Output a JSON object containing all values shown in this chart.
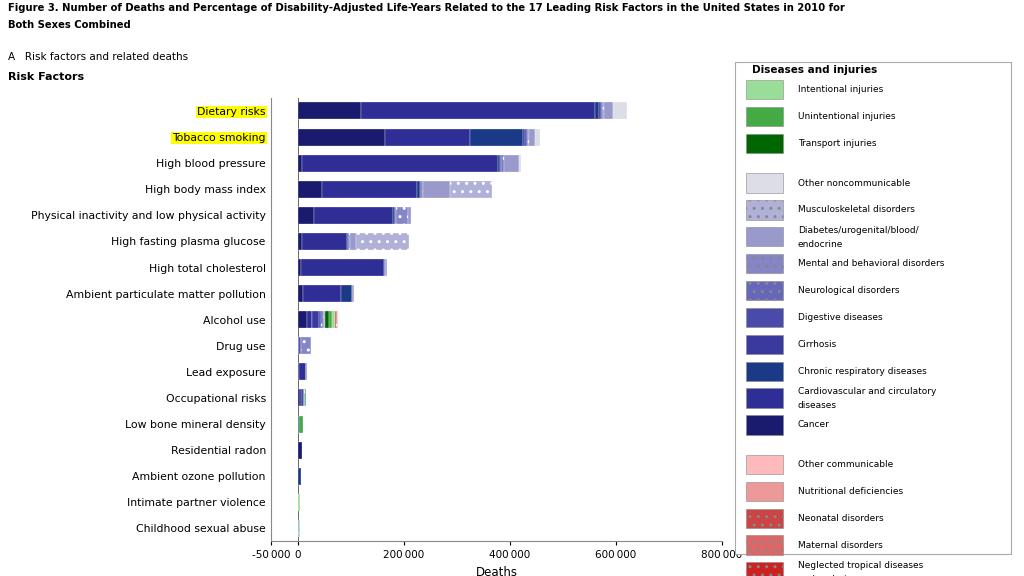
{
  "title_line1": "Figure 3. Number of Deaths and Percentage of Disability-Adjusted Life-Years Related to the 17 Leading Risk Factors in the United States in 2010 for",
  "title_line2": "Both Sexes Combined",
  "subtitle": "A   Risk factors and related deaths",
  "xlabel": "Deaths",
  "xlim": [
    -50000,
    800000
  ],
  "risk_factors": [
    "Dietary risks",
    "Tobacco smoking",
    "High blood pressure",
    "High body mass index",
    "Physical inactivity and low physical activity",
    "High fasting plasma glucose",
    "High total cholesterol",
    "Ambient particulate matter pollution",
    "Alcohol use",
    "Drug use",
    "Lead exposure",
    "Occupational risks",
    "Low bone mineral density",
    "Residential radon",
    "Ambient ozone pollution",
    "Intimate partner violence",
    "Childhood sexual abuse"
  ],
  "highlighted": [
    0,
    1
  ],
  "highlight_color": "#FFFF00",
  "bar_data": {
    "Dietary risks": {
      "Cancer": 120000,
      "Cardiovascular and circulatory diseases": 440000,
      "Chronic respiratory diseases": 8000,
      "Cirrhosis": 3000,
      "Digestive diseases": 3000,
      "Neurological disorders": 2000,
      "Mental and behavioral disorders": 1000,
      "Diabetes/urogenital/blood/endocrine": 18000,
      "Musculoskeletal disorders": 0,
      "Other noncommunicable": 25000,
      "Transport injuries": 0,
      "Unintentional injuries": 0,
      "Intentional injuries": 0,
      "Neglected tropical diseases and malaria": 0,
      "Maternal disorders": 0,
      "Neonatal disorders": 0,
      "Nutritional deficiencies": 0,
      "Other communicable": 0
    },
    "Tobacco smoking": {
      "Cancer": 165000,
      "Cardiovascular and circulatory diseases": 160000,
      "Chronic respiratory diseases": 100000,
      "Cirrhosis": 4000,
      "Digestive diseases": 4000,
      "Neurological disorders": 2000,
      "Mental and behavioral disorders": 1000,
      "Diabetes/urogenital/blood/endocrine": 12000,
      "Musculoskeletal disorders": 0,
      "Other noncommunicable": 8000,
      "Transport injuries": 0,
      "Unintentional injuries": 0,
      "Intentional injuries": 0,
      "Neglected tropical diseases and malaria": 0,
      "Maternal disorders": 0,
      "Neonatal disorders": 0,
      "Nutritional deficiencies": 0,
      "Other communicable": 0
    },
    "High blood pressure": {
      "Cancer": 8000,
      "Cardiovascular and circulatory diseases": 370000,
      "Chronic respiratory diseases": 4000,
      "Cirrhosis": 2000,
      "Digestive diseases": 2000,
      "Neurological disorders": 2000,
      "Mental and behavioral disorders": 1000,
      "Diabetes/urogenital/blood/endocrine": 28000,
      "Musculoskeletal disorders": 0,
      "Other noncommunicable": 4000,
      "Transport injuries": 0,
      "Unintentional injuries": 0,
      "Intentional injuries": 0,
      "Neglected tropical diseases and malaria": 0,
      "Maternal disorders": 0,
      "Neonatal disorders": 0,
      "Nutritional deficiencies": 0,
      "Other communicable": 0
    },
    "High body mass index": {
      "Cancer": 45000,
      "Cardiovascular and circulatory diseases": 180000,
      "Chronic respiratory diseases": 5000,
      "Cirrhosis": 2000,
      "Digestive diseases": 2000,
      "Neurological disorders": 2000,
      "Mental and behavioral disorders": 1000,
      "Diabetes/urogenital/blood/endocrine": 50000,
      "Musculoskeletal disorders": 80000,
      "Other noncommunicable": 0,
      "Transport injuries": 0,
      "Unintentional injuries": 0,
      "Intentional injuries": 0,
      "Neglected tropical diseases and malaria": 0,
      "Maternal disorders": 0,
      "Neonatal disorders": 0,
      "Nutritional deficiencies": 0,
      "Other communicable": 0
    },
    "Physical inactivity and low physical activity": {
      "Cancer": 30000,
      "Cardiovascular and circulatory diseases": 150000,
      "Chronic respiratory diseases": 3000,
      "Cirrhosis": 1000,
      "Digestive diseases": 1000,
      "Neurological disorders": 1000,
      "Mental and behavioral disorders": 22000,
      "Diabetes/urogenital/blood/endocrine": 5000,
      "Musculoskeletal disorders": 0,
      "Other noncommunicable": 0,
      "Transport injuries": 0,
      "Unintentional injuries": 0,
      "Intentional injuries": 0,
      "Neglected tropical diseases and malaria": 0,
      "Maternal disorders": 0,
      "Neonatal disorders": 0,
      "Nutritional deficiencies": 0,
      "Other communicable": 0
    },
    "High fasting plasma glucose": {
      "Cancer": 8000,
      "Cardiovascular and circulatory diseases": 85000,
      "Chronic respiratory diseases": 2000,
      "Cirrhosis": 1000,
      "Digestive diseases": 1000,
      "Neurological disorders": 1000,
      "Mental and behavioral disorders": 1000,
      "Diabetes/urogenital/blood/endocrine": 10000,
      "Musculoskeletal disorders": 100000,
      "Other noncommunicable": 0,
      "Transport injuries": 0,
      "Unintentional injuries": 0,
      "Intentional injuries": 0,
      "Neglected tropical diseases and malaria": 0,
      "Maternal disorders": 0,
      "Neonatal disorders": 0,
      "Nutritional deficiencies": 0,
      "Other communicable": 0
    },
    "High total cholesterol": {
      "Cancer": 5000,
      "Cardiovascular and circulatory diseases": 158000,
      "Chronic respiratory diseases": 1000,
      "Cirrhosis": 500,
      "Digestive diseases": 500,
      "Neurological disorders": 500,
      "Mental and behavioral disorders": 500,
      "Diabetes/urogenital/blood/endocrine": 2000,
      "Musculoskeletal disorders": 0,
      "Other noncommunicable": 0,
      "Transport injuries": 0,
      "Unintentional injuries": 0,
      "Intentional injuries": 0,
      "Neglected tropical diseases and malaria": 0,
      "Maternal disorders": 0,
      "Neonatal disorders": 0,
      "Nutritional deficiencies": 0,
      "Other communicable": 0
    },
    "Ambient particulate matter pollution": {
      "Cancer": 10000,
      "Cardiovascular and circulatory diseases": 72000,
      "Chronic respiratory diseases": 20000,
      "Cirrhosis": 1000,
      "Digestive diseases": 500,
      "Neurological disorders": 500,
      "Mental and behavioral disorders": 500,
      "Diabetes/urogenital/blood/endocrine": 1000,
      "Musculoskeletal disorders": 0,
      "Other noncommunicable": 0,
      "Transport injuries": 0,
      "Unintentional injuries": 0,
      "Intentional injuries": 0,
      "Neglected tropical diseases and malaria": 0,
      "Maternal disorders": 0,
      "Neonatal disorders": 0,
      "Nutritional deficiencies": 0,
      "Other communicable": 0
    },
    "Alcohol use": {
      "Cancer": 18000,
      "Cardiovascular and circulatory diseases": 8000,
      "Chronic respiratory diseases": 500,
      "Cirrhosis": 14000,
      "Digestive diseases": 4000,
      "Neurological disorders": 2000,
      "Mental and behavioral disorders": 3000,
      "Diabetes/urogenital/blood/endocrine": 2000,
      "Musculoskeletal disorders": 0,
      "Other noncommunicable": 0,
      "Transport injuries": 8000,
      "Unintentional injuries": 5000,
      "Intentional injuries": 5000,
      "Neglected tropical diseases and malaria": 2000,
      "Maternal disorders": 0,
      "Neonatal disorders": 2000,
      "Nutritional deficiencies": 1000,
      "Other communicable": 2000
    },
    "Drug use": {
      "Cancer": 500,
      "Cardiovascular and circulatory diseases": 2000,
      "Chronic respiratory diseases": 500,
      "Cirrhosis": 2000,
      "Digestive diseases": 500,
      "Neurological disorders": 500,
      "Mental and behavioral disorders": 18000,
      "Diabetes/urogenital/blood/endocrine": 500,
      "Musculoskeletal disorders": 0,
      "Other noncommunicable": 0,
      "Transport injuries": 0,
      "Unintentional injuries": 0,
      "Intentional injuries": 0,
      "Neglected tropical diseases and malaria": 0,
      "Maternal disorders": 0,
      "Neonatal disorders": 0,
      "Nutritional deficiencies": 0,
      "Other communicable": 0
    },
    "Lead exposure": {
      "Cancer": 1500,
      "Cardiovascular and circulatory diseases": 13000,
      "Chronic respiratory diseases": 500,
      "Cirrhosis": 500,
      "Digestive diseases": 500,
      "Neurological disorders": 500,
      "Mental and behavioral disorders": 500,
      "Diabetes/urogenital/blood/endocrine": 500,
      "Musculoskeletal disorders": 0,
      "Other noncommunicable": 0,
      "Transport injuries": 0,
      "Unintentional injuries": 0,
      "Intentional injuries": 0,
      "Neglected tropical diseases and malaria": 0,
      "Maternal disorders": 0,
      "Neonatal disorders": 0,
      "Nutritional deficiencies": 0,
      "Other communicable": 0
    },
    "Occupational risks": {
      "Cancer": 4000,
      "Cardiovascular and circulatory diseases": 4000,
      "Chronic respiratory diseases": 3000,
      "Cirrhosis": 500,
      "Digestive diseases": 500,
      "Neurological disorders": 500,
      "Mental and behavioral disorders": 500,
      "Diabetes/urogenital/blood/endocrine": 500,
      "Musculoskeletal disorders": 0,
      "Other noncommunicable": 0,
      "Transport injuries": 0,
      "Unintentional injuries": 2000,
      "Intentional injuries": 0,
      "Neglected tropical diseases and malaria": 0,
      "Maternal disorders": 0,
      "Neonatal disorders": 0,
      "Nutritional deficiencies": 0,
      "Other communicable": 0
    },
    "Low bone mineral density": {
      "Cancer": 0,
      "Cardiovascular and circulatory diseases": 2000,
      "Chronic respiratory diseases": 0,
      "Cirrhosis": 0,
      "Digestive diseases": 0,
      "Neurological disorders": 0,
      "Mental and behavioral disorders": 0,
      "Diabetes/urogenital/blood/endocrine": 0,
      "Musculoskeletal disorders": 0,
      "Other noncommunicable": 0,
      "Transport injuries": 0,
      "Unintentional injuries": 7000,
      "Intentional injuries": 0,
      "Neglected tropical diseases and malaria": 0,
      "Maternal disorders": 0,
      "Neonatal disorders": 0,
      "Nutritional deficiencies": 0,
      "Other communicable": 0
    },
    "Residential radon": {
      "Cancer": 7500,
      "Cardiovascular and circulatory diseases": 0,
      "Chronic respiratory diseases": 0,
      "Cirrhosis": 0,
      "Digestive diseases": 0,
      "Neurological disorders": 0,
      "Mental and behavioral disorders": 0,
      "Diabetes/urogenital/blood/endocrine": 0,
      "Musculoskeletal disorders": 0,
      "Other noncommunicable": 0,
      "Transport injuries": 0,
      "Unintentional injuries": 0,
      "Intentional injuries": 0,
      "Neglected tropical diseases and malaria": 0,
      "Maternal disorders": 0,
      "Neonatal disorders": 0,
      "Nutritional deficiencies": 0,
      "Other communicable": 0
    },
    "Ambient ozone pollution": {
      "Cancer": 0,
      "Cardiovascular and circulatory diseases": 0,
      "Chronic respiratory diseases": 6000,
      "Cirrhosis": 0,
      "Digestive diseases": 0,
      "Neurological disorders": 0,
      "Mental and behavioral disorders": 0,
      "Diabetes/urogenital/blood/endocrine": 0,
      "Musculoskeletal disorders": 0,
      "Other noncommunicable": 0,
      "Transport injuries": 0,
      "Unintentional injuries": 0,
      "Intentional injuries": 0,
      "Neglected tropical diseases and malaria": 0,
      "Maternal disorders": 0,
      "Neonatal disorders": 0,
      "Nutritional deficiencies": 0,
      "Other communicable": 0
    },
    "Intimate partner violence": {
      "Cancer": 0,
      "Cardiovascular and circulatory diseases": 0,
      "Chronic respiratory diseases": 0,
      "Cirrhosis": 0,
      "Digestive diseases": 0,
      "Neurological disorders": 0,
      "Mental and behavioral disorders": 0,
      "Diabetes/urogenital/blood/endocrine": 0,
      "Musculoskeletal disorders": 0,
      "Other noncommunicable": 0,
      "Transport injuries": 0,
      "Unintentional injuries": 0,
      "Intentional injuries": 3500,
      "Neglected tropical diseases and malaria": 0,
      "Maternal disorders": 0,
      "Neonatal disorders": 0,
      "Nutritional deficiencies": 0,
      "Other communicable": 0
    },
    "Childhood sexual abuse": {
      "Cancer": 0,
      "Cardiovascular and circulatory diseases": 0,
      "Chronic respiratory diseases": 0,
      "Cirrhosis": 0,
      "Digestive diseases": 0,
      "Neurological disorders": 0,
      "Mental and behavioral disorders": 2500,
      "Diabetes/urogenital/blood/endocrine": 0,
      "Musculoskeletal disorders": 0,
      "Other noncommunicable": 0,
      "Transport injuries": 0,
      "Unintentional injuries": 0,
      "Intentional injuries": 1000,
      "Neglected tropical diseases and malaria": 0,
      "Maternal disorders": 0,
      "Neonatal disorders": 0,
      "Nutritional deficiencies": 0,
      "Other communicable": 0
    }
  },
  "cat_order": [
    "Cancer",
    "Cardiovascular and circulatory diseases",
    "Chronic respiratory diseases",
    "Cirrhosis",
    "Digestive diseases",
    "Neurological disorders",
    "Mental and behavioral disorders",
    "Diabetes/urogenital/blood/endocrine",
    "Musculoskeletal disorders",
    "Other noncommunicable",
    "Transport injuries",
    "Unintentional injuries",
    "Intentional injuries",
    "Neglected tropical diseases and malaria",
    "Maternal disorders",
    "Neonatal disorders",
    "Nutritional deficiencies",
    "Other communicable"
  ],
  "cat_colors": {
    "Cancer": "#1a1a6e",
    "Cardiovascular and circulatory diseases": "#2e2e96",
    "Chronic respiratory diseases": "#1a3a88",
    "Cirrhosis": "#3a3a9e",
    "Digestive diseases": "#4a4aaa",
    "Neurological disorders": "#6666bb",
    "Mental and behavioral disorders": "#8585c8",
    "Diabetes/urogenital/blood/endocrine": "#9999cc",
    "Musculoskeletal disorders": "#b0b0d8",
    "Other noncommunicable": "#dddde8",
    "Transport injuries": "#006600",
    "Unintentional injuries": "#44aa44",
    "Intentional injuries": "#99dd99",
    "Neglected tropical diseases and malaria": "#cc2222",
    "Maternal disorders": "#dd6666",
    "Neonatal disorders": "#cc4444",
    "Nutritional deficiencies": "#ee9999",
    "Other communicable": "#ffbbbb"
  },
  "cat_hatches": {
    "Cancer": "",
    "Cardiovascular and circulatory diseases": "",
    "Chronic respiratory diseases": "",
    "Cirrhosis": "",
    "Digestive diseases": "",
    "Neurological disorders": "..",
    "Mental and behavioral disorders": "..",
    "Diabetes/urogenital/blood/endocrine": "",
    "Musculoskeletal disorders": "..",
    "Other noncommunicable": "",
    "Transport injuries": "",
    "Unintentional injuries": "",
    "Intentional injuries": "",
    "Neglected tropical diseases and malaria": "..",
    "Maternal disorders": "..",
    "Neonatal disorders": "..",
    "Nutritional deficiencies": "",
    "Other communicable": ""
  },
  "legend_groups": [
    {
      "items": [
        {
          "label": "Intentional injuries",
          "color": "#99dd99",
          "hatch": ""
        },
        {
          "label": "Unintentional injuries",
          "color": "#44aa44",
          "hatch": ""
        },
        {
          "label": "Transport injuries",
          "color": "#006600",
          "hatch": ""
        }
      ]
    },
    {
      "items": [
        {
          "label": "Other noncommunicable",
          "color": "#dddde8",
          "hatch": ""
        },
        {
          "label": "Musculoskeletal disorders",
          "color": "#b0b0d8",
          "hatch": ".."
        },
        {
          "label": "Diabetes/urogenital/blood/\nendocrine",
          "color": "#9999cc",
          "hatch": ""
        },
        {
          "label": "Mental and behavioral disorders",
          "color": "#8585c8",
          "hatch": ".."
        },
        {
          "label": "Neurological disorders",
          "color": "#6666bb",
          "hatch": ".."
        },
        {
          "label": "Digestive diseases",
          "color": "#4a4aaa",
          "hatch": ""
        },
        {
          "label": "Cirrhosis",
          "color": "#3a3a9e",
          "hatch": ""
        },
        {
          "label": "Chronic respiratory diseases",
          "color": "#1a3a88",
          "hatch": ""
        },
        {
          "label": "Cardiovascular and circulatory\ndiseases",
          "color": "#2e2e96",
          "hatch": ""
        },
        {
          "label": "Cancer",
          "color": "#1a1a6e",
          "hatch": ""
        }
      ]
    },
    {
      "items": [
        {
          "label": "Other communicable",
          "color": "#ffbbbb",
          "hatch": ""
        },
        {
          "label": "Nutritional deficiencies",
          "color": "#ee9999",
          "hatch": ""
        },
        {
          "label": "Neonatal disorders",
          "color": "#cc4444",
          "hatch": ".."
        },
        {
          "label": "Maternal disorders",
          "color": "#dd6666",
          "hatch": ".."
        },
        {
          "label": "Neglected tropical diseases\nand malaria",
          "color": "#cc2222",
          "hatch": ".."
        }
      ]
    }
  ]
}
